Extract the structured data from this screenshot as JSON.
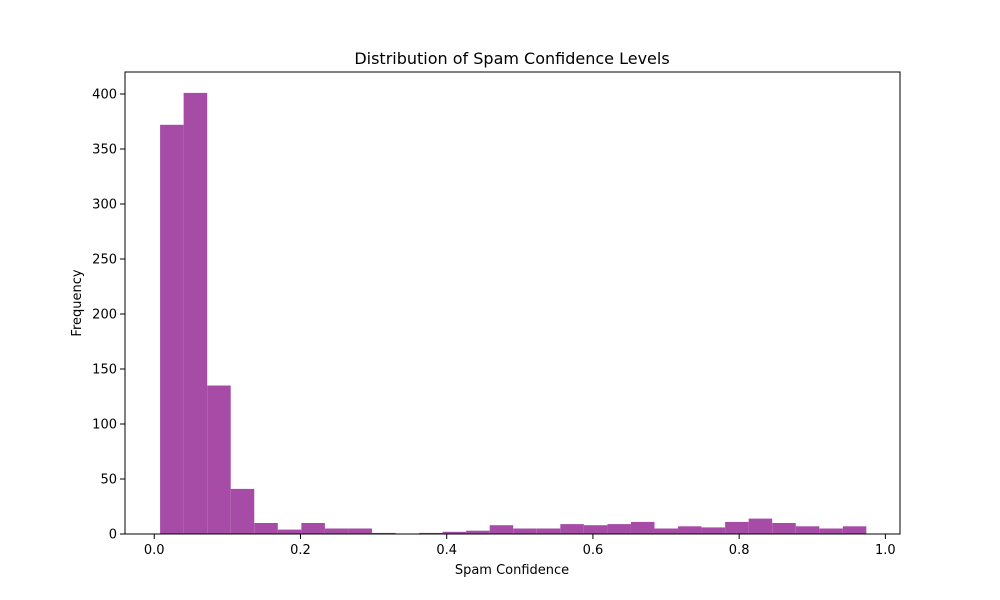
{
  "chart_data": {
    "type": "bar",
    "title": "Distribution of Spam Confidence Levels",
    "xlabel": "Spam Confidence",
    "ylabel": "Frequency",
    "bar_color": "#a64ca6",
    "xlim": [
      -0.04,
      1.02
    ],
    "ylim": [
      0,
      420
    ],
    "x_ticks": [
      {
        "value": 0.0,
        "label": "0.0"
      },
      {
        "value": 0.2,
        "label": "0.2"
      },
      {
        "value": 0.4,
        "label": "0.4"
      },
      {
        "value": 0.6,
        "label": "0.6"
      },
      {
        "value": 0.8,
        "label": "0.8"
      },
      {
        "value": 1.0,
        "label": "1.0"
      }
    ],
    "y_ticks": [
      {
        "value": 0,
        "label": "0"
      },
      {
        "value": 50,
        "label": "50"
      },
      {
        "value": 100,
        "label": "100"
      },
      {
        "value": 150,
        "label": "150"
      },
      {
        "value": 200,
        "label": "200"
      },
      {
        "value": 250,
        "label": "250"
      },
      {
        "value": 300,
        "label": "300"
      },
      {
        "value": 350,
        "label": "350"
      },
      {
        "value": 400,
        "label": "400"
      }
    ],
    "bin_start": 0.008,
    "bin_end": 0.974,
    "values": [
      372,
      401,
      135,
      41,
      10,
      4,
      10,
      5,
      5,
      1,
      0,
      1,
      2,
      3,
      8,
      5,
      5,
      9,
      8,
      9,
      11,
      5,
      7,
      6,
      11,
      14,
      10,
      7,
      5,
      7
    ]
  }
}
